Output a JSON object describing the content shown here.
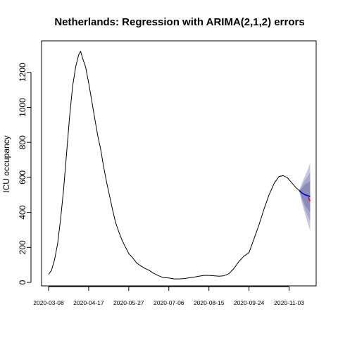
{
  "chart_data": {
    "type": "line",
    "title": "Netherlands: Regression with ARIMA(2,1,2) errors",
    "xlabel": "",
    "ylabel": "ICU occupancy",
    "x_start": "2020-03-01",
    "x_end": "2020-11-30",
    "ylim": [
      -20,
      1380
    ],
    "y_ticks": [
      0,
      200,
      400,
      600,
      800,
      1000,
      1200
    ],
    "x_ticks": [
      "2020-03-08",
      "2020-04-17",
      "2020-05-27",
      "2020-07-06",
      "2020-08-15",
      "2020-09-24",
      "2020-11-03"
    ],
    "grid": false,
    "legend": "none",
    "series": [
      {
        "color": "#000000",
        "points": [
          [
            "2020-03-08",
            45
          ],
          [
            "2020-03-11",
            70
          ],
          [
            "2020-03-14",
            130
          ],
          [
            "2020-03-17",
            220
          ],
          [
            "2020-03-20",
            360
          ],
          [
            "2020-03-23",
            530
          ],
          [
            "2020-03-26",
            740
          ],
          [
            "2020-03-29",
            950
          ],
          [
            "2020-04-01",
            1120
          ],
          [
            "2020-04-04",
            1230
          ],
          [
            "2020-04-07",
            1300
          ],
          [
            "2020-04-09",
            1320
          ],
          [
            "2020-04-11",
            1280
          ],
          [
            "2020-04-14",
            1230
          ],
          [
            "2020-04-17",
            1140
          ],
          [
            "2020-04-20",
            1040
          ],
          [
            "2020-04-23",
            940
          ],
          [
            "2020-04-26",
            840
          ],
          [
            "2020-04-29",
            760
          ],
          [
            "2020-05-02",
            660
          ],
          [
            "2020-05-05",
            570
          ],
          [
            "2020-05-08",
            490
          ],
          [
            "2020-05-11",
            410
          ],
          [
            "2020-05-14",
            340
          ],
          [
            "2020-05-17",
            290
          ],
          [
            "2020-05-20",
            245
          ],
          [
            "2020-05-23",
            210
          ],
          [
            "2020-05-27",
            165
          ],
          [
            "2020-05-31",
            140
          ],
          [
            "2020-06-04",
            110
          ],
          [
            "2020-06-08",
            95
          ],
          [
            "2020-06-12",
            80
          ],
          [
            "2020-06-16",
            70
          ],
          [
            "2020-06-20",
            55
          ],
          [
            "2020-06-25",
            40
          ],
          [
            "2020-06-30",
            28
          ],
          [
            "2020-07-06",
            25
          ],
          [
            "2020-07-11",
            20
          ],
          [
            "2020-07-16",
            20
          ],
          [
            "2020-07-21",
            22
          ],
          [
            "2020-07-26",
            26
          ],
          [
            "2020-07-31",
            30
          ],
          [
            "2020-08-05",
            35
          ],
          [
            "2020-08-10",
            40
          ],
          [
            "2020-08-15",
            40
          ],
          [
            "2020-08-20",
            38
          ],
          [
            "2020-08-25",
            35
          ],
          [
            "2020-08-30",
            38
          ],
          [
            "2020-09-04",
            50
          ],
          [
            "2020-09-09",
            80
          ],
          [
            "2020-09-14",
            120
          ],
          [
            "2020-09-19",
            150
          ],
          [
            "2020-09-24",
            170
          ],
          [
            "2020-09-29",
            250
          ],
          [
            "2020-10-04",
            330
          ],
          [
            "2020-10-09",
            420
          ],
          [
            "2020-10-14",
            500
          ],
          [
            "2020-10-19",
            565
          ],
          [
            "2020-10-24",
            605
          ],
          [
            "2020-10-28",
            610
          ],
          [
            "2020-11-01",
            600
          ],
          [
            "2020-11-04",
            580
          ],
          [
            "2020-11-07",
            560
          ],
          [
            "2020-11-10",
            540
          ],
          [
            "2020-11-13",
            525
          ]
        ]
      },
      {
        "color": "#0000cc",
        "points": [
          [
            "2020-11-13",
            525
          ],
          [
            "2020-11-16",
            510
          ],
          [
            "2020-11-19",
            500
          ],
          [
            "2020-11-22",
            495
          ],
          [
            "2020-11-24",
            490
          ]
        ]
      },
      {
        "color": "#ff0000",
        "points": [
          [
            "2020-11-22",
            485
          ],
          [
            "2020-11-23",
            475
          ],
          [
            "2020-11-24",
            465
          ]
        ]
      }
    ],
    "forecast_bands": [
      {
        "color": "#c8c8e0",
        "points": [
          [
            "2020-11-13",
            525,
            525
          ],
          [
            "2020-11-16",
            570,
            450
          ],
          [
            "2020-11-19",
            610,
            390
          ],
          [
            "2020-11-22",
            650,
            330
          ],
          [
            "2020-11-24",
            685,
            295
          ]
        ]
      },
      {
        "color": "#a8a8cc",
        "points": [
          [
            "2020-11-13",
            525,
            525
          ],
          [
            "2020-11-16",
            555,
            465
          ],
          [
            "2020-11-19",
            585,
            415
          ],
          [
            "2020-11-22",
            610,
            375
          ],
          [
            "2020-11-24",
            630,
            350
          ]
        ]
      },
      {
        "color": "#8c8cb8",
        "points": [
          [
            "2020-11-13",
            525,
            525
          ],
          [
            "2020-11-16",
            540,
            480
          ],
          [
            "2020-11-19",
            560,
            440
          ],
          [
            "2020-11-22",
            570,
            415
          ],
          [
            "2020-11-24",
            580,
            400
          ]
        ]
      }
    ]
  }
}
